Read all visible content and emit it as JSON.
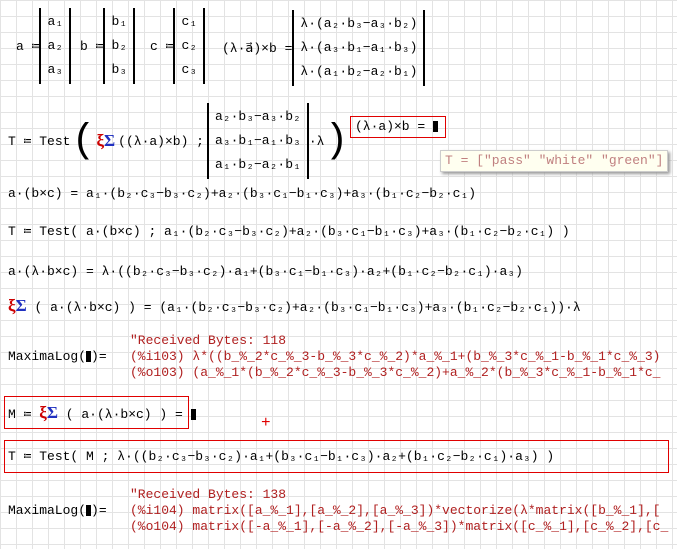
{
  "defs": {
    "a": {
      "name": "a ≔",
      "items": [
        "a₁",
        "a₂",
        "a₃"
      ]
    },
    "b": {
      "name": "b ≔",
      "items": [
        "b₁",
        "b₂",
        "b₃"
      ]
    },
    "c": {
      "name": "c ≔",
      "items": [
        "c₁",
        "c₂",
        "c₃"
      ]
    },
    "cross": {
      "lhs": "(λ·a⃗)×b =",
      "items": [
        "λ·(a₂·b₃−a₃·b₂)",
        "λ·(a₃·b₁−a₁·b₃)",
        "λ·(a₁·b₂−a₂·b₁)"
      ]
    }
  },
  "test1": {
    "lhs": "T ≔ Test",
    "arg1": "((λ·a)×b) ;",
    "items": [
      "a₂·b₃−a₃·b₂",
      "a₃·b₁−a₁·b₃",
      "a₁·b₂−a₂·b₁"
    ],
    "tail": "·λ"
  },
  "tooltip": "T = [\"pass\" \"white\" \"green\"]",
  "boxed_eval": "(λ·a)×b =",
  "line_triple": "a·(b×c) = a₁·(b₂·c₃−b₃·c₂)+a₂·(b₃·c₁−b₁·c₃)+a₃·(b₁·c₂−b₂·c₁)",
  "line_test2": "T ≔ Test( a·(b×c) ; a₁·(b₂·c₃−b₃·c₂)+a₂·(b₃·c₁−b₁·c₃)+a₃·(b₁·c₂−b₂·c₁) )",
  "line_lambda": "a·(λ·b×c) = λ·((b₂·c₃−b₃·c₂)·a₁+(b₃·c₁−b₁·c₃)·a₂+(b₁·c₂−b₂·c₁)·a₃)",
  "line_sym": "( a·(λ·b×c) ) = (a₁·(b₂·c₃−b₃·c₂)+a₂·(b₃·c₁−b₁·c₃)+a₃·(b₁·c₂−b₂·c₁))·λ",
  "log1": {
    "received": "\"Received Bytes: 118",
    "lhs": "MaximaLog(",
    "rhs": ")=",
    "in": "(%i103) λ*((b_%_2*c_%_3-b_%_3*c_%_2)*a_%_1+(b_%_3*c_%_1-b_%_1*c_%_3)",
    "out": "(%o103) (a_%_1*(b_%_2*c_%_3-b_%_3*c_%_2)+a_%_2*(b_%_3*c_%_1-b_%_1*c_"
  },
  "m_def": {
    "lhs": "M ≔",
    "rhs": "( a·(λ·b×c) ) ="
  },
  "test3": "T ≔ Test( M ; λ·((b₂·c₃−b₃·c₂)·a₁+(b₃·c₁−b₁·c₃)·a₂+(b₁·c₂−b₂·c₁)·a₃) )",
  "log2": {
    "received": "\"Received Bytes: 138",
    "lhs": "MaximaLog(",
    "rhs": ")=",
    "in": "(%i104) matrix([a_%_1],[a_%_2],[a_%_3])*vectorize(λ*matrix([b_%_1],[",
    "out": "(%o104) matrix([-a_%_1],[-a_%_2],[-a_%_3])*matrix([c_%_1],[c_%_2],[c_"
  },
  "symbol_icon": "symbolic-sum-icon",
  "colors": {
    "box": "#e00000",
    "log": "#b02020"
  }
}
